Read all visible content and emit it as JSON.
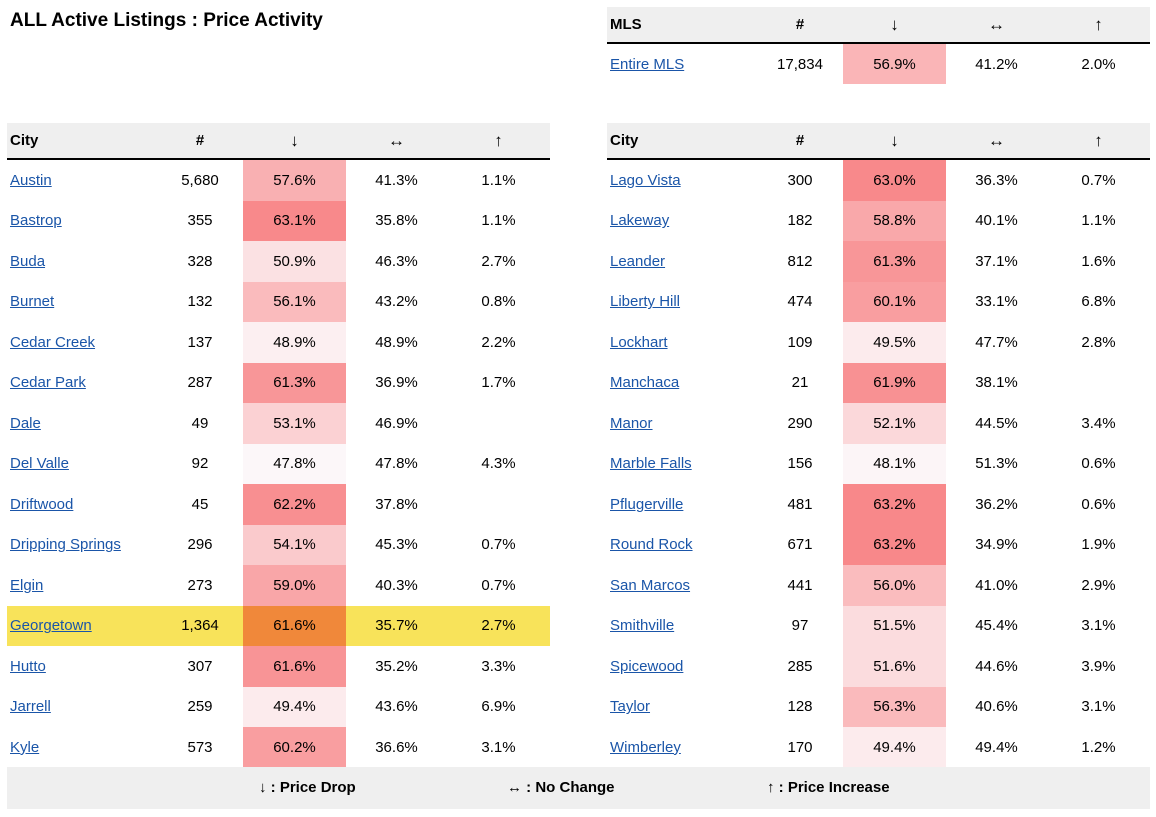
{
  "title": "ALL Active Listings : Price Activity",
  "columns": {
    "city": "City",
    "mls": "MLS",
    "count": "#",
    "drop": "↓",
    "no_change": "↔",
    "up": "↑"
  },
  "mls": {
    "name": "Entire MLS",
    "count": "17,834",
    "drop": "56.9%",
    "no_change": "41.2%",
    "up": "2.0%",
    "drop_value": 56.9
  },
  "left_rows": [
    {
      "city": "Austin",
      "count": "5,680",
      "drop": "57.6%",
      "no_change": "41.3%",
      "up": "1.1%",
      "drop_value": 57.6
    },
    {
      "city": "Bastrop",
      "count": "355",
      "drop": "63.1%",
      "no_change": "35.8%",
      "up": "1.1%",
      "drop_value": 63.1
    },
    {
      "city": "Buda",
      "count": "328",
      "drop": "50.9%",
      "no_change": "46.3%",
      "up": "2.7%",
      "drop_value": 50.9
    },
    {
      "city": "Burnet",
      "count": "132",
      "drop": "56.1%",
      "no_change": "43.2%",
      "up": "0.8%",
      "drop_value": 56.1
    },
    {
      "city": "Cedar Creek",
      "count": "137",
      "drop": "48.9%",
      "no_change": "48.9%",
      "up": "2.2%",
      "drop_value": 48.9
    },
    {
      "city": "Cedar Park",
      "count": "287",
      "drop": "61.3%",
      "no_change": "36.9%",
      "up": "1.7%",
      "drop_value": 61.3
    },
    {
      "city": "Dale",
      "count": "49",
      "drop": "53.1%",
      "no_change": "46.9%",
      "up": "",
      "drop_value": 53.1
    },
    {
      "city": "Del Valle",
      "count": "92",
      "drop": "47.8%",
      "no_change": "47.8%",
      "up": "4.3%",
      "drop_value": 47.8
    },
    {
      "city": "Driftwood",
      "count": "45",
      "drop": "62.2%",
      "no_change": "37.8%",
      "up": "",
      "drop_value": 62.2
    },
    {
      "city": "Dripping Springs",
      "count": "296",
      "drop": "54.1%",
      "no_change": "45.3%",
      "up": "0.7%",
      "drop_value": 54.1
    },
    {
      "city": "Elgin",
      "count": "273",
      "drop": "59.0%",
      "no_change": "40.3%",
      "up": "0.7%",
      "drop_value": 59.0
    },
    {
      "city": "Georgetown",
      "count": "1,364",
      "drop": "61.6%",
      "no_change": "35.7%",
      "up": "2.7%",
      "drop_value": 61.6,
      "highlight": true
    },
    {
      "city": "Hutto",
      "count": "307",
      "drop": "61.6%",
      "no_change": "35.2%",
      "up": "3.3%",
      "drop_value": 61.6
    },
    {
      "city": "Jarrell",
      "count": "259",
      "drop": "49.4%",
      "no_change": "43.6%",
      "up": "6.9%",
      "drop_value": 49.4
    },
    {
      "city": "Kyle",
      "count": "573",
      "drop": "60.2%",
      "no_change": "36.6%",
      "up": "3.1%",
      "drop_value": 60.2
    }
  ],
  "right_rows": [
    {
      "city": "Lago Vista",
      "count": "300",
      "drop": "63.0%",
      "no_change": "36.3%",
      "up": "0.7%",
      "drop_value": 63.0
    },
    {
      "city": "Lakeway",
      "count": "182",
      "drop": "58.8%",
      "no_change": "40.1%",
      "up": "1.1%",
      "drop_value": 58.8
    },
    {
      "city": "Leander",
      "count": "812",
      "drop": "61.3%",
      "no_change": "37.1%",
      "up": "1.6%",
      "drop_value": 61.3
    },
    {
      "city": "Liberty Hill",
      "count": "474",
      "drop": "60.1%",
      "no_change": "33.1%",
      "up": "6.8%",
      "drop_value": 60.1
    },
    {
      "city": "Lockhart",
      "count": "109",
      "drop": "49.5%",
      "no_change": "47.7%",
      "up": "2.8%",
      "drop_value": 49.5
    },
    {
      "city": "Manchaca",
      "count": "21",
      "drop": "61.9%",
      "no_change": "38.1%",
      "up": "",
      "drop_value": 61.9
    },
    {
      "city": "Manor",
      "count": "290",
      "drop": "52.1%",
      "no_change": "44.5%",
      "up": "3.4%",
      "drop_value": 52.1
    },
    {
      "city": "Marble Falls",
      "count": "156",
      "drop": "48.1%",
      "no_change": "51.3%",
      "up": "0.6%",
      "drop_value": 48.1
    },
    {
      "city": "Pflugerville",
      "count": "481",
      "drop": "63.2%",
      "no_change": "36.2%",
      "up": "0.6%",
      "drop_value": 63.2
    },
    {
      "city": "Round Rock",
      "count": "671",
      "drop": "63.2%",
      "no_change": "34.9%",
      "up": "1.9%",
      "drop_value": 63.2
    },
    {
      "city": "San Marcos",
      "count": "441",
      "drop": "56.0%",
      "no_change": "41.0%",
      "up": "2.9%",
      "drop_value": 56.0
    },
    {
      "city": "Smithville",
      "count": "97",
      "drop": "51.5%",
      "no_change": "45.4%",
      "up": "3.1%",
      "drop_value": 51.5
    },
    {
      "city": "Spicewood",
      "count": "285",
      "drop": "51.6%",
      "no_change": "44.6%",
      "up": "3.9%",
      "drop_value": 51.6
    },
    {
      "city": "Taylor",
      "count": "128",
      "drop": "56.3%",
      "no_change": "40.6%",
      "up": "3.1%",
      "drop_value": 56.3
    },
    {
      "city": "Wimberley",
      "count": "170",
      "drop": "49.4%",
      "no_change": "49.4%",
      "up": "1.2%",
      "drop_value": 49.4
    }
  ],
  "legend": {
    "drop": "↓ : Price Drop",
    "no_change": "↔ : No Change",
    "up": "↑ : Price Increase"
  },
  "colors": {
    "heat_low": "#fcf7f9",
    "heat_high": "#f8888a",
    "highlight_row": "#f8e35a",
    "highlight_cell": "#f0883a",
    "link": "#1a55a8",
    "header_bg": "#efefef"
  }
}
